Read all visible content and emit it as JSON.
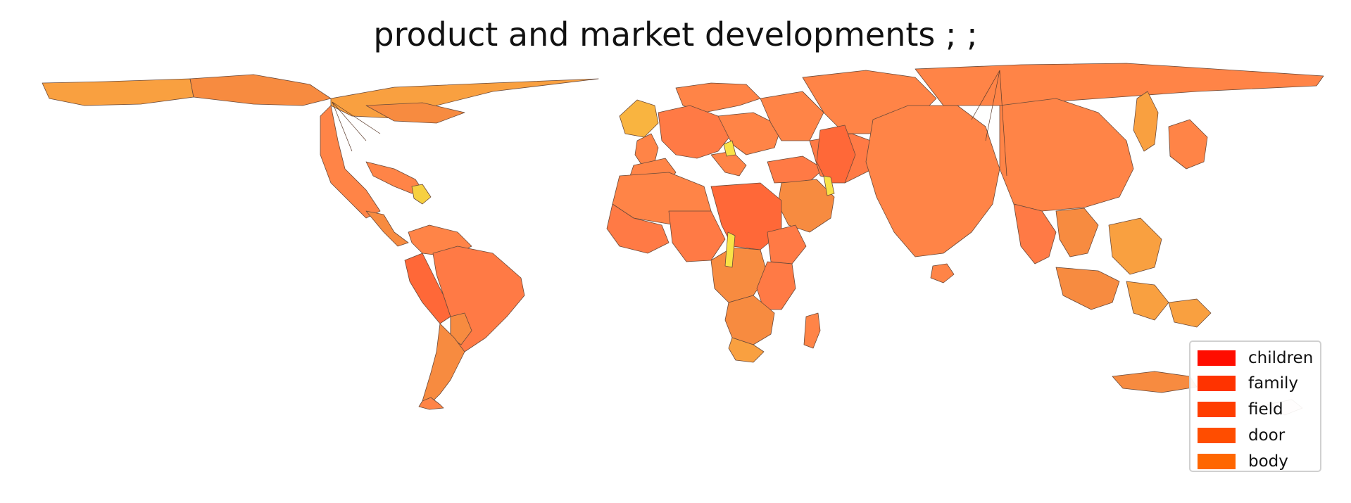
{
  "title": "product and market developments ; ;",
  "legend": {
    "entries": [
      {
        "label": "children",
        "color": "#ff0d00"
      },
      {
        "label": "family",
        "color": "#ff3300"
      },
      {
        "label": "field",
        "color": "#ff3d00"
      },
      {
        "label": "door",
        "color": "#ff4d00"
      },
      {
        "label": "body",
        "color": "#ff6600"
      }
    ]
  },
  "map": {
    "type": "cartogram world map",
    "fill_colors": [
      "#ff8447",
      "#ff7a45",
      "#f9a040",
      "#f78b40",
      "#f7b940",
      "#f9e347",
      "#ff6838"
    ],
    "outline_color": "#5a3a2a"
  }
}
